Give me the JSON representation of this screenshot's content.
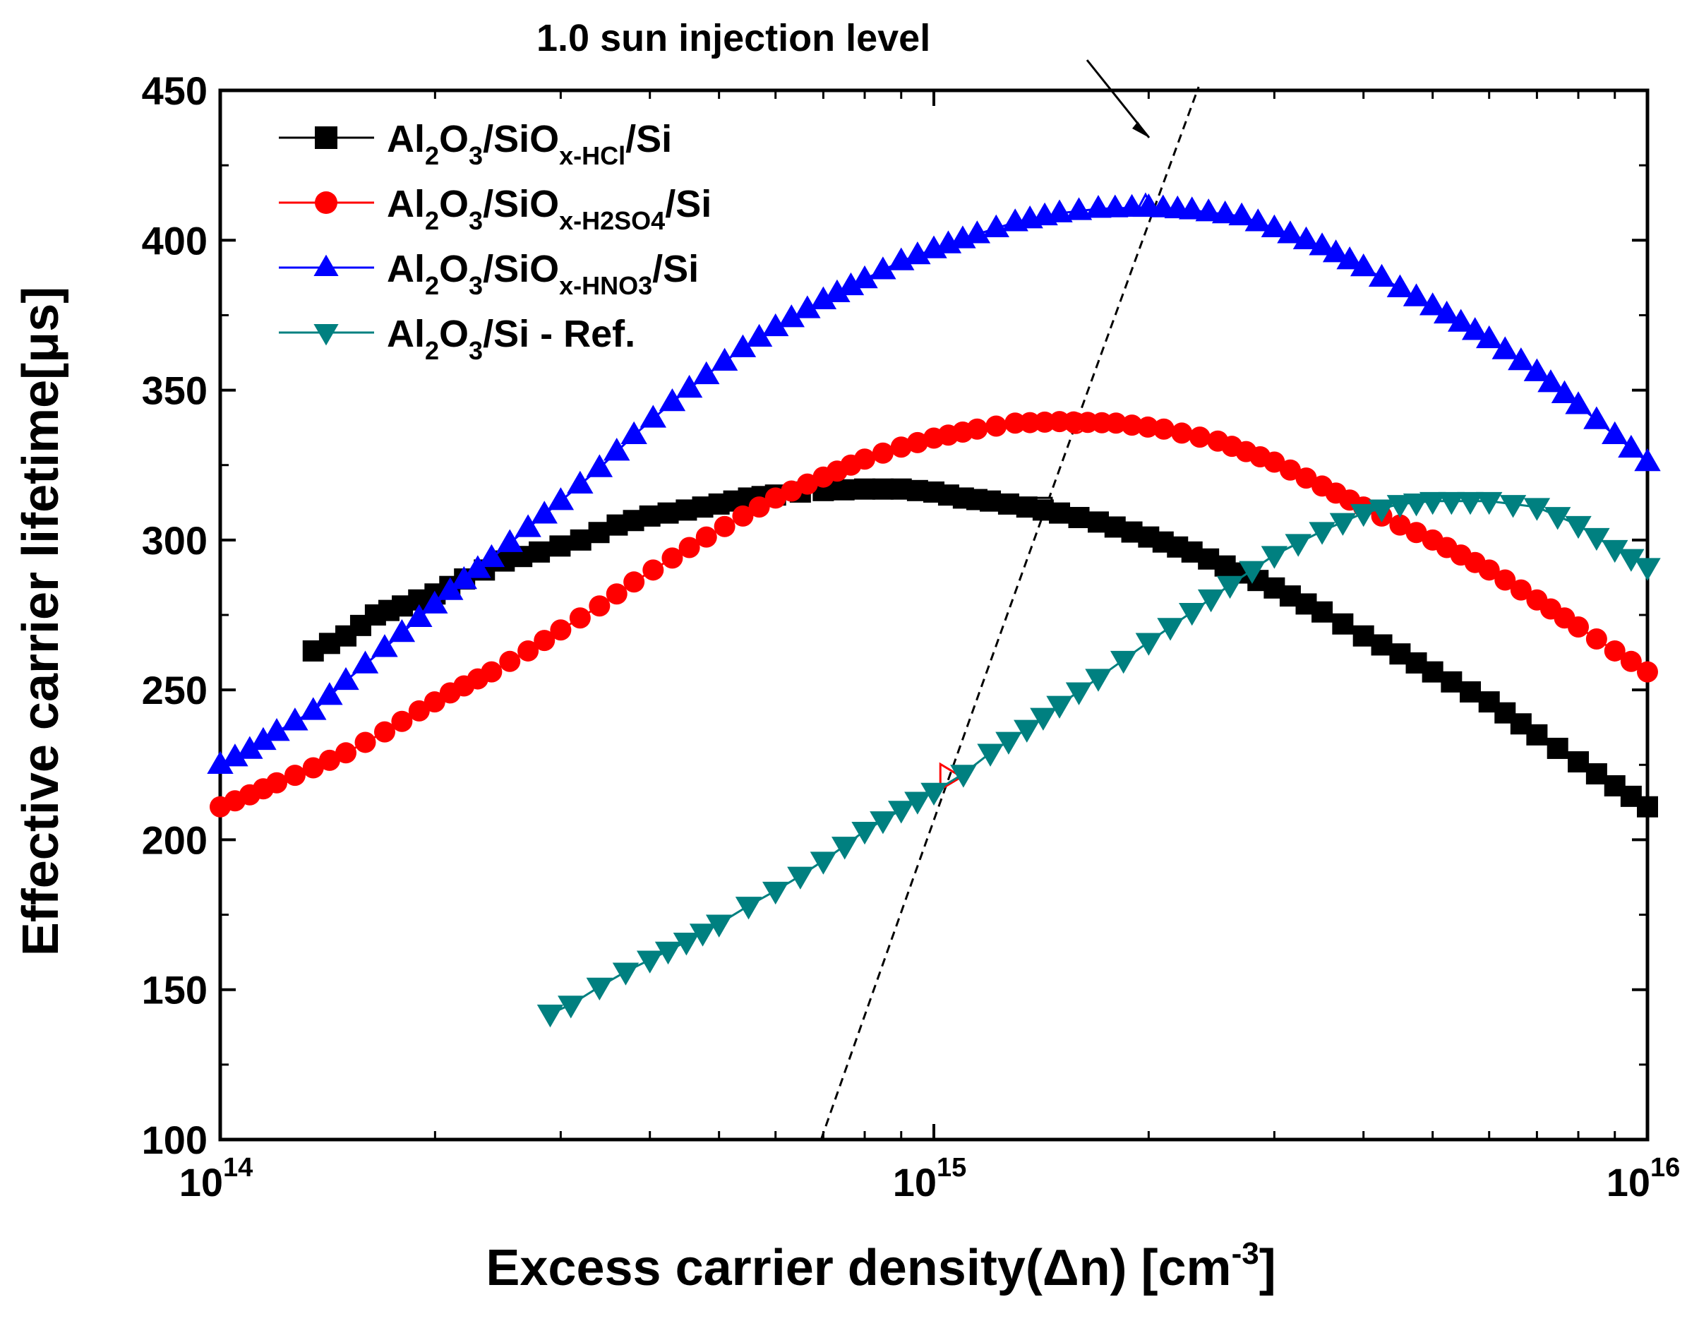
{
  "chart_data": {
    "type": "scatter",
    "annotation": "1.0 sun injection level",
    "xlabel": "Excess carrier density(Δn) [cm",
    "xlabel_sup": "-3",
    "xlabel_end": "]",
    "ylabel": "Effective carrier lifetime[μs]",
    "xscale": "log",
    "xlim": [
      100000000000000.0,
      1e+16
    ],
    "ylim": [
      100,
      450
    ],
    "x_ticks": [
      {
        "base": "10",
        "exp": "14",
        "value": 100000000000000.0
      },
      {
        "base": "10",
        "exp": "15",
        "value": 1000000000000000.0
      },
      {
        "base": "10",
        "exp": "16",
        "value": 1e+16
      }
    ],
    "y_ticks": [
      "100",
      "150",
      "200",
      "250",
      "300",
      "350",
      "400",
      "450"
    ],
    "legend_position": "top-left",
    "series": [
      {
        "name": "Al2O3/SiOx-HCl/Si",
        "legend": {
          "parts": [
            [
              "Al",
              ""
            ],
            [
              "2",
              "sub"
            ],
            [
              "O",
              ""
            ],
            [
              "3",
              "sub"
            ],
            [
              "/SiO",
              ""
            ],
            [
              "x-HCl",
              "sub"
            ],
            [
              "/Si",
              ""
            ]
          ]
        },
        "color": "#000000",
        "marker": "square",
        "points": [
          [
            135000000000000.0,
            263
          ],
          [
            150000000000000.0,
            268
          ],
          [
            165000000000000.0,
            275
          ],
          [
            180000000000000.0,
            278
          ],
          [
            200000000000000.0,
            282
          ],
          [
            220000000000000.0,
            287
          ],
          [
            250000000000000.0,
            293
          ],
          [
            280000000000000.0,
            296
          ],
          [
            320000000000000.0,
            300
          ],
          [
            360000000000000.0,
            305
          ],
          [
            400000000000000.0,
            308
          ],
          [
            450000000000000.0,
            310
          ],
          [
            500000000000000.0,
            312
          ],
          [
            550000000000000.0,
            314
          ],
          [
            600000000000000.0,
            315
          ],
          [
            650000000000000.0,
            316
          ],
          [
            700000000000000.0,
            316.5
          ],
          [
            800000000000000.0,
            317
          ],
          [
            900000000000000.0,
            317
          ],
          [
            1000000000000000.0,
            316
          ],
          [
            1100000000000000.0,
            314
          ],
          [
            1200000000000000.0,
            313
          ],
          [
            1350000000000000.0,
            311
          ],
          [
            1500000000000000.0,
            309
          ],
          [
            1700000000000000.0,
            306
          ],
          [
            2000000000000000.0,
            301
          ],
          [
            2300000000000000.0,
            296
          ],
          [
            2700000000000000.0,
            289
          ],
          [
            3000000000000000.0,
            284
          ],
          [
            3500000000000000.0,
            276
          ],
          [
            4000000000000000.0,
            268
          ],
          [
            4500000000000000.0,
            262
          ],
          [
            5000000000000000.0,
            256
          ],
          [
            6000000000000000.0,
            246
          ],
          [
            7000000000000000.0,
            235
          ],
          [
            8000000000000000.0,
            226
          ],
          [
            9000000000000000.0,
            218
          ],
          [
            1e+16,
            211
          ]
        ]
      },
      {
        "name": "Al2O3/SiOx-H2SO4/Si",
        "legend": {
          "parts": [
            [
              "Al",
              ""
            ],
            [
              "2",
              "sub"
            ],
            [
              "O",
              ""
            ],
            [
              "3",
              "sub"
            ],
            [
              "/SiO",
              ""
            ],
            [
              "x-H2SO4",
              "sub"
            ],
            [
              "/Si",
              ""
            ]
          ]
        },
        "color": "#ff0000",
        "marker": "circle",
        "points": [
          [
            100000000000000.0,
            211
          ],
          [
            110000000000000.0,
            215
          ],
          [
            120000000000000.0,
            219
          ],
          [
            135000000000000.0,
            224
          ],
          [
            150000000000000.0,
            229
          ],
          [
            170000000000000.0,
            236
          ],
          [
            190000000000000.0,
            243
          ],
          [
            210000000000000.0,
            249
          ],
          [
            240000000000000.0,
            256
          ],
          [
            270000000000000.0,
            263
          ],
          [
            300000000000000.0,
            270
          ],
          [
            340000000000000.0,
            278
          ],
          [
            380000000000000.0,
            286
          ],
          [
            430000000000000.0,
            294
          ],
          [
            480000000000000.0,
            301
          ],
          [
            540000000000000.0,
            308
          ],
          [
            600000000000000.0,
            314
          ],
          [
            700000000000000.0,
            321
          ],
          [
            800000000000000.0,
            327
          ],
          [
            900000000000000.0,
            331
          ],
          [
            1000000000000000.0,
            334
          ],
          [
            1150000000000000.0,
            337
          ],
          [
            1300000000000000.0,
            339
          ],
          [
            1500000000000000.0,
            339.5
          ],
          [
            1800000000000000.0,
            339
          ],
          [
            2100000000000000.0,
            337
          ],
          [
            2500000000000000.0,
            333
          ],
          [
            3000000000000000.0,
            326
          ],
          [
            3500000000000000.0,
            318
          ],
          [
            4000000000000000.0,
            311
          ],
          [
            4500000000000000.0,
            305
          ],
          [
            5000000000000000.0,
            300
          ],
          [
            6000000000000000.0,
            290
          ],
          [
            7000000000000000.0,
            280
          ],
          [
            8000000000000000.0,
            271
          ],
          [
            9000000000000000.0,
            263
          ],
          [
            1e+16,
            256
          ]
        ]
      },
      {
        "name": "Al2O3/SiOx-HNO3/Si",
        "legend": {
          "parts": [
            [
              "Al",
              ""
            ],
            [
              "2",
              "sub"
            ],
            [
              "O",
              ""
            ],
            [
              "3",
              "sub"
            ],
            [
              "/SiO",
              ""
            ],
            [
              "x-HNO3",
              "sub"
            ],
            [
              "/Si",
              ""
            ]
          ]
        },
        "color": "#0000ff",
        "marker": "triangle-up",
        "points": [
          [
            100000000000000.0,
            225
          ],
          [
            110000000000000.0,
            230
          ],
          [
            120000000000000.0,
            236
          ],
          [
            135000000000000.0,
            243
          ],
          [
            150000000000000.0,
            253
          ],
          [
            170000000000000.0,
            264
          ],
          [
            190000000000000.0,
            274
          ],
          [
            210000000000000.0,
            283
          ],
          [
            240000000000000.0,
            294
          ],
          [
            270000000000000.0,
            304
          ],
          [
            300000000000000.0,
            313
          ],
          [
            340000000000000.0,
            324
          ],
          [
            380000000000000.0,
            335
          ],
          [
            430000000000000.0,
            346
          ],
          [
            480000000000000.0,
            355
          ],
          [
            540000000000000.0,
            364
          ],
          [
            600000000000000.0,
            371
          ],
          [
            700000000000000.0,
            380
          ],
          [
            800000000000000.0,
            387
          ],
          [
            900000000000000.0,
            393
          ],
          [
            1000000000000000.0,
            397
          ],
          [
            1150000000000000.0,
            402
          ],
          [
            1300000000000000.0,
            406
          ],
          [
            1500000000000000.0,
            409
          ],
          [
            1700000000000000.0,
            410.5
          ],
          [
            2000000000000000.0,
            411
          ],
          [
            2300000000000000.0,
            410
          ],
          [
            2700000000000000.0,
            408
          ],
          [
            3000000000000000.0,
            404
          ],
          [
            3500000000000000.0,
            398
          ],
          [
            4000000000000000.0,
            391
          ],
          [
            4500000000000000.0,
            384
          ],
          [
            5000000000000000.0,
            378
          ],
          [
            6000000000000000.0,
            367
          ],
          [
            7000000000000000.0,
            356
          ],
          [
            8000000000000000.0,
            345
          ],
          [
            9000000000000000.0,
            335
          ],
          [
            1e+16,
            326
          ]
        ]
      },
      {
        "name": "Al2O3/Si - Ref.",
        "legend": {
          "parts": [
            [
              "Al",
              ""
            ],
            [
              "2",
              "sub"
            ],
            [
              "O",
              ""
            ],
            [
              "3",
              "sub"
            ],
            [
              "/Si - Ref.",
              ""
            ]
          ]
        },
        "color": "#008080",
        "marker": "triangle-down",
        "points": [
          [
            290000000000000.0,
            142
          ],
          [
            310000000000000.0,
            145
          ],
          [
            340000000000000.0,
            151
          ],
          [
            370000000000000.0,
            156
          ],
          [
            400000000000000.0,
            160
          ],
          [
            450000000000000.0,
            166
          ],
          [
            500000000000000.0,
            172
          ],
          [
            550000000000000.0,
            178
          ],
          [
            600000000000000.0,
            183
          ],
          [
            650000000000000.0,
            188
          ],
          [
            700000000000000.0,
            193
          ],
          [
            750000000000000.0,
            198
          ],
          [
            800000000000000.0,
            203
          ],
          [
            900000000000000.0,
            210
          ],
          [
            1000000000000000.0,
            216
          ],
          [
            1100000000000000.0,
            222
          ],
          [
            1200000000000000.0,
            229
          ],
          [
            1350000000000000.0,
            237
          ],
          [
            1500000000000000.0,
            245
          ],
          [
            1700000000000000.0,
            254
          ],
          [
            2000000000000000.0,
            266
          ],
          [
            2300000000000000.0,
            276
          ],
          [
            2600000000000000.0,
            285
          ],
          [
            3000000000000000.0,
            295
          ],
          [
            3500000000000000.0,
            303
          ],
          [
            4000000000000000.0,
            309
          ],
          [
            4500000000000000.0,
            312
          ],
          [
            5000000000000000.0,
            313
          ],
          [
            6000000000000000.0,
            313
          ],
          [
            7000000000000000.0,
            311
          ],
          [
            8000000000000000.0,
            305
          ],
          [
            9000000000000000.0,
            297
          ],
          [
            1e+16,
            291
          ]
        ]
      }
    ]
  }
}
